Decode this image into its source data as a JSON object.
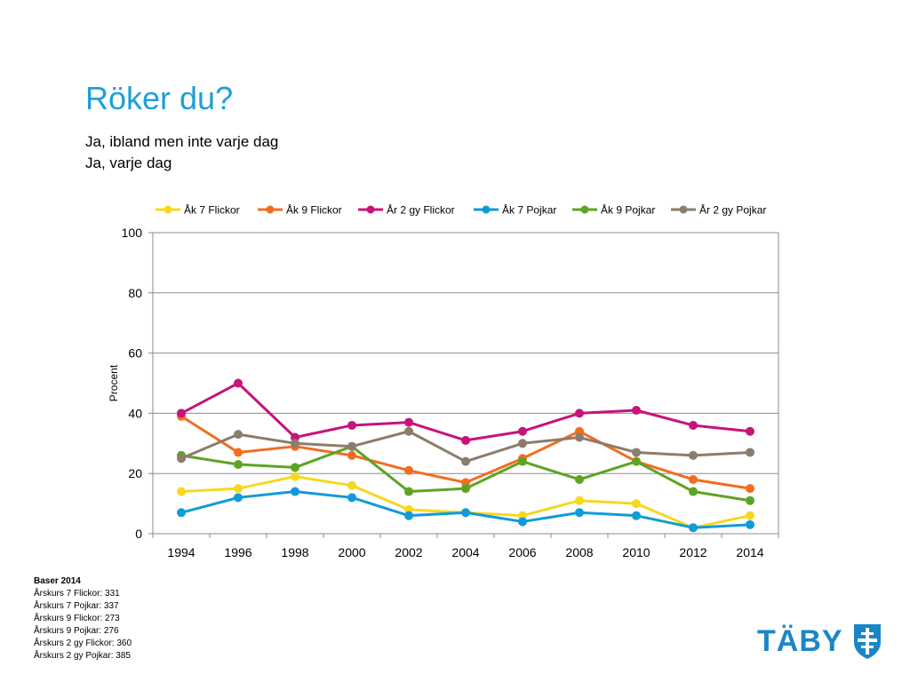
{
  "slide": {
    "title": "Röker du?",
    "subtitle_lines": [
      "Ja, ibland men inte varje dag",
      "Ja, varje dag"
    ]
  },
  "chart_data": {
    "type": "line",
    "x": [
      1994,
      1996,
      1998,
      2000,
      2002,
      2004,
      2006,
      2008,
      2010,
      2012,
      2014
    ],
    "ylabel": "Procent",
    "ylim": [
      0,
      100
    ],
    "yticks": [
      0,
      20,
      40,
      60,
      80,
      100
    ],
    "grid": true,
    "legend": "top",
    "series": [
      {
        "name": "Åk 7 Flickor",
        "color": "#f5d81f",
        "values": [
          14,
          15,
          19,
          16,
          8,
          7,
          6,
          11,
          10,
          2,
          6
        ]
      },
      {
        "name": "Åk 9 Flickor",
        "color": "#f26d21",
        "values": [
          39,
          27,
          29,
          26,
          21,
          17,
          25,
          34,
          24,
          18,
          15
        ]
      },
      {
        "name": "År 2 gy Flickor",
        "color": "#c8137a",
        "values": [
          40,
          50,
          32,
          36,
          37,
          31,
          34,
          40,
          41,
          36,
          34
        ]
      },
      {
        "name": "Åk 7 Pojkar",
        "color": "#119ad8",
        "values": [
          7,
          12,
          14,
          12,
          6,
          7,
          4,
          7,
          6,
          2,
          3
        ]
      },
      {
        "name": "Åk 9 Pojkar",
        "color": "#5da423",
        "values": [
          26,
          23,
          22,
          29,
          14,
          15,
          24,
          18,
          24,
          14,
          11
        ]
      },
      {
        "name": "År 2 gy Pojkar",
        "color": "#8b7d6b",
        "values": [
          25,
          33,
          30,
          29,
          34,
          24,
          30,
          32,
          27,
          26,
          27
        ]
      }
    ]
  },
  "footnote": {
    "heading": "Baser 2014",
    "lines": [
      "Årskurs 7 Flickor: 331",
      "Årskurs 7 Pojkar: 337",
      "Årskurs 9 Flickor: 273",
      "Årskurs 9 Pojkar: 276",
      "Årskurs 2 gy Flickor: 360",
      "Årskurs 2 gy Pojkar: 385"
    ]
  },
  "logo": {
    "text": "TÄBY",
    "color": "#1a86c8",
    "icon": "taby-shield-icon"
  }
}
